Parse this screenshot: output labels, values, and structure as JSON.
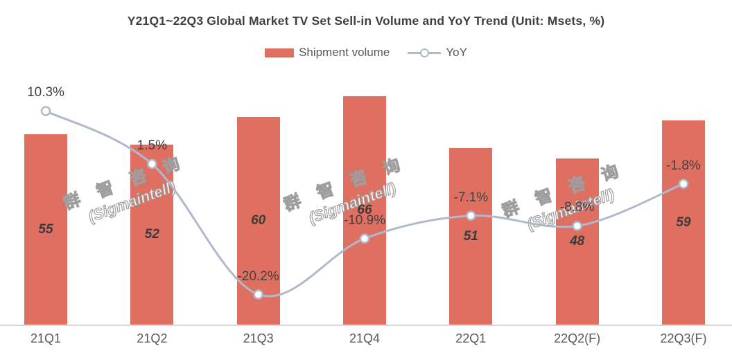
{
  "title": "Y21Q1~22Q3 Global Market TV Set Sell-in Volume and YoY Trend (Unit: Msets, %)",
  "watermark": {
    "line1": "群 智 咨 询",
    "line2": "(Sigmaintell)"
  },
  "colors": {
    "bar": "#df7061",
    "line": "#b0b9cc",
    "axis": "#d9d9d9",
    "title_text": "#3f3f3f",
    "label_text": "#3f3f3f",
    "axis_text": "#595959"
  },
  "chart_data": {
    "type": "bar+line combo",
    "title": "Y21Q1~22Q3 Global Market TV Set Sell-in Volume and YoY Trend (Unit: Msets, %)",
    "categories": [
      "21Q1",
      "21Q2",
      "21Q3",
      "21Q4",
      "22Q1",
      "22Q2(F)",
      "22Q3(F)"
    ],
    "series": [
      {
        "name": "Shipment volume",
        "type": "bar",
        "unit": "Msets",
        "color": "#df7061",
        "values": [
          55,
          52,
          60,
          66,
          51,
          48,
          59
        ],
        "labels": [
          "55",
          "52",
          "60",
          "66",
          "51",
          "48",
          "59"
        ],
        "label_position": "center"
      },
      {
        "name": "YoY",
        "type": "line",
        "unit": "%",
        "color": "#b0b9cc",
        "marker": "open-circle",
        "smooth": true,
        "values": [
          10.3,
          1.5,
          -20.2,
          -10.9,
          -7.1,
          -8.8,
          -1.8
        ],
        "labels": [
          "10.3%",
          "1.5%",
          "-20.2%",
          "-10.9%",
          "-7.1%",
          "-8.8%",
          "-1.8%"
        ],
        "label_position": "above"
      }
    ],
    "xlabel": "",
    "ylabel": "",
    "grid": false,
    "y_axis_visible": false,
    "legend_position": "top-center"
  }
}
